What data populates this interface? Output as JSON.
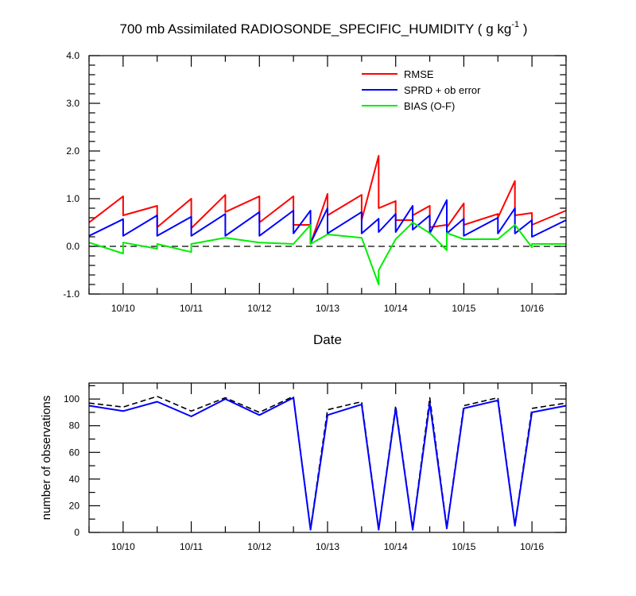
{
  "chart_data": [
    {
      "type": "line",
      "title_main": "700 mb Assimilated RADIOSONDE_SPECIFIC_HUMIDITY ( g kg",
      "title_sup": "-1",
      "title_end": " )",
      "xlabel": "Date",
      "ylabel": "",
      "ylim": [
        -1.0,
        4.0
      ],
      "yticks": [
        "-1.0",
        "0.0",
        "1.0",
        "2.0",
        "3.0",
        "4.0"
      ],
      "xlim": [
        9.5,
        16.5
      ],
      "xticks": [
        "10/10",
        "10/11",
        "10/12",
        "10/13",
        "10/14",
        "10/15",
        "10/16"
      ],
      "zero_line": "dashed",
      "legend_position": "top-right",
      "series": [
        {
          "name": "RMSE",
          "color": "#ff0000",
          "x": [
            9.5,
            10.0,
            10.0,
            10.5,
            10.5,
            11.0,
            11.0,
            11.5,
            11.5,
            12.0,
            12.0,
            12.5,
            12.5,
            12.75,
            12.75,
            13.0,
            13.0,
            13.5,
            13.5,
            13.75,
            13.75,
            14.0,
            14.0,
            14.25,
            14.25,
            14.5,
            14.5,
            14.75,
            14.75,
            15.0,
            15.0,
            15.5,
            15.5,
            15.75,
            15.75,
            16.0,
            16.0,
            16.5
          ],
          "y": [
            0.5,
            1.05,
            0.65,
            0.85,
            0.4,
            1.0,
            0.38,
            1.08,
            0.72,
            1.05,
            0.5,
            1.05,
            0.45,
            0.45,
            0.05,
            1.1,
            0.65,
            1.08,
            0.55,
            1.9,
            0.8,
            0.95,
            0.55,
            0.55,
            0.65,
            0.85,
            0.4,
            0.45,
            0.4,
            0.9,
            0.45,
            0.68,
            0.6,
            1.37,
            0.65,
            0.7,
            0.45,
            0.75
          ]
        },
        {
          "name": "SPRD + ob error",
          "color": "#0000ff",
          "x": [
            9.5,
            10.0,
            10.0,
            10.5,
            10.5,
            11.0,
            11.0,
            11.5,
            11.5,
            12.0,
            12.0,
            12.5,
            12.5,
            12.75,
            12.75,
            13.0,
            13.0,
            13.5,
            13.5,
            13.75,
            13.75,
            14.0,
            14.0,
            14.25,
            14.25,
            14.5,
            14.5,
            14.75,
            14.75,
            15.0,
            15.0,
            15.5,
            15.5,
            15.75,
            15.75,
            16.0,
            16.0,
            16.5
          ],
          "y": [
            0.22,
            0.57,
            0.22,
            0.65,
            0.22,
            0.62,
            0.22,
            0.68,
            0.22,
            0.72,
            0.22,
            0.75,
            0.27,
            0.75,
            0.07,
            0.8,
            0.27,
            0.72,
            0.27,
            0.58,
            0.3,
            0.68,
            0.3,
            0.85,
            0.35,
            0.65,
            0.27,
            0.97,
            0.27,
            0.58,
            0.22,
            0.6,
            0.27,
            0.8,
            0.27,
            0.55,
            0.2,
            0.55
          ]
        },
        {
          "name": "BIAS (O-F)",
          "color": "#00ee00",
          "x": [
            9.5,
            10.0,
            10.0,
            10.5,
            10.5,
            11.0,
            11.0,
            11.5,
            12.0,
            12.5,
            12.75,
            12.75,
            13.0,
            13.5,
            13.75,
            13.75,
            14.0,
            14.25,
            14.5,
            14.75,
            14.75,
            15.0,
            15.5,
            15.75,
            16.0,
            16.0,
            16.5
          ],
          "y": [
            0.08,
            -0.15,
            0.08,
            -0.05,
            0.05,
            -0.12,
            0.05,
            0.18,
            0.08,
            0.05,
            0.45,
            0.05,
            0.25,
            0.18,
            -0.8,
            -0.5,
            0.15,
            0.5,
            0.28,
            -0.08,
            0.28,
            0.15,
            0.15,
            0.45,
            -0.02,
            0.05,
            0.05
          ]
        }
      ]
    },
    {
      "type": "line",
      "title": "",
      "xlabel": "",
      "ylabel": "number of observations",
      "ylim": [
        0,
        112
      ],
      "yticks": [
        "0",
        "20",
        "40",
        "60",
        "80",
        "100"
      ],
      "xlim": [
        9.5,
        16.5
      ],
      "xticks": [
        "10/10",
        "10/11",
        "10/12",
        "10/13",
        "10/14",
        "10/15",
        "10/16"
      ],
      "series": [
        {
          "name": "",
          "color": "#000000",
          "style": "dashed",
          "x": [
            9.5,
            10.0,
            10.5,
            11.0,
            11.5,
            12.0,
            12.5,
            12.75,
            13.0,
            13.5,
            13.75,
            14.0,
            14.25,
            14.5,
            14.75,
            15.0,
            15.5,
            15.75,
            16.0,
            16.5
          ],
          "y": [
            97,
            94,
            102,
            91,
            101,
            90,
            102,
            3,
            92,
            98,
            3,
            95,
            3,
            101,
            4,
            95,
            101,
            6,
            93,
            97
          ]
        },
        {
          "name": "",
          "color": "#0000ff",
          "style": "solid",
          "x": [
            9.5,
            10.0,
            10.5,
            11.0,
            11.5,
            12.0,
            12.5,
            12.75,
            13.0,
            13.5,
            13.75,
            14.0,
            14.25,
            14.5,
            14.75,
            15.0,
            15.5,
            15.75,
            16.0,
            16.5
          ],
          "y": [
            95,
            91,
            98,
            87,
            100,
            88,
            101,
            2,
            88,
            96,
            2,
            93,
            2,
            97,
            3,
            93,
            99,
            5,
            90,
            95
          ]
        }
      ]
    }
  ]
}
